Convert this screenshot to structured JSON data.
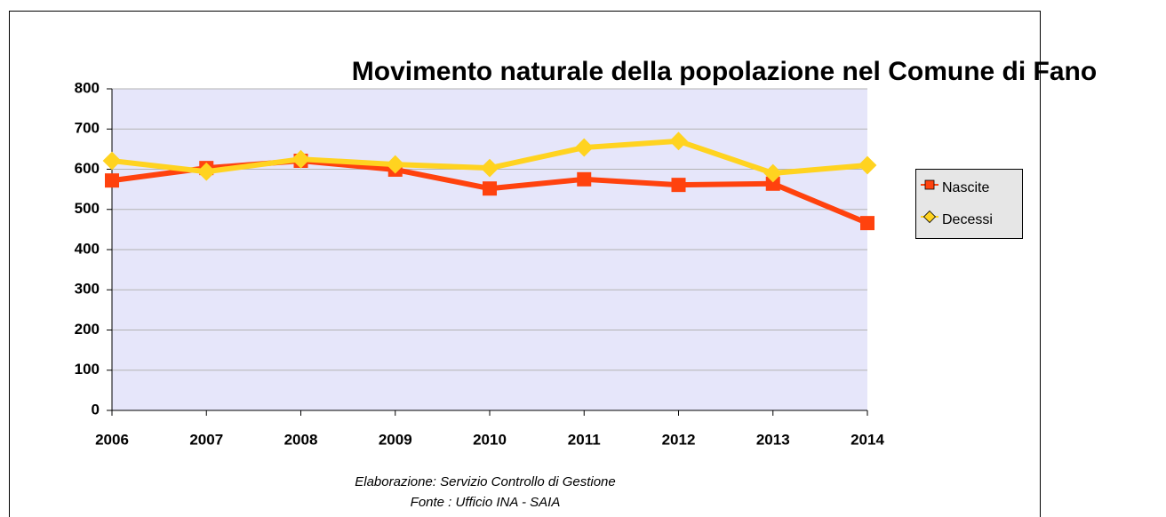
{
  "chart_data": {
    "type": "line",
    "title": "Movimento naturale della popolazione nel Comune di Fano",
    "categories": [
      "2006",
      "2007",
      "2008",
      "2009",
      "2010",
      "2011",
      "2012",
      "2013",
      "2014"
    ],
    "series": [
      {
        "name": "Nascite",
        "color": "#ff420e",
        "marker": "square",
        "values": [
          572,
          603,
          621,
          599,
          552,
          575,
          561,
          564,
          466
        ]
      },
      {
        "name": "Decessi",
        "color": "#ffd320",
        "marker": "diamond",
        "values": [
          621,
          594,
          625,
          612,
          603,
          654,
          670,
          590,
          610
        ]
      }
    ],
    "ylim": [
      0,
      800
    ],
    "yticks": [
      0,
      100,
      200,
      300,
      400,
      500,
      600,
      700,
      800
    ],
    "grid": true,
    "legend": "right",
    "notes": [
      "Elaborazione: Servizio Controllo di Gestione",
      "Fonte : Ufficio INA - SAIA"
    ]
  }
}
